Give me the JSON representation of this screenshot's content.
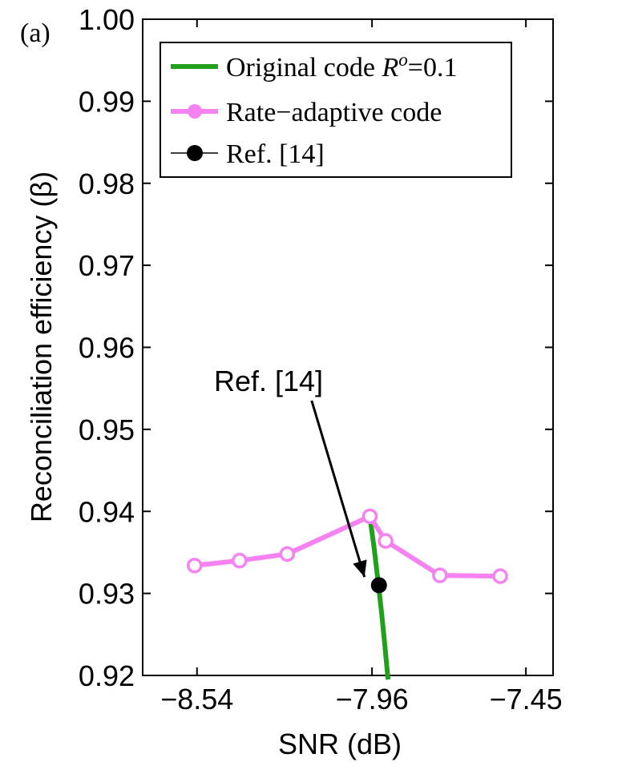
{
  "panel_label": "(a)",
  "chart_data": {
    "type": "line",
    "title": "",
    "xlabel": "SNR (dB)",
    "ylabel": "Reconciliation efficiency (β)",
    "xlim": [
      -8.72,
      -7.36
    ],
    "ylim": [
      0.92,
      1.0
    ],
    "xticks": [
      -8.54,
      -7.96,
      -7.45
    ],
    "xtick_labels": [
      "−8.54",
      "−7.96",
      "−7.45"
    ],
    "yticks": [
      0.92,
      0.93,
      0.94,
      0.95,
      0.96,
      0.97,
      0.98,
      0.99,
      1.0
    ],
    "ytick_labels": [
      "0.92",
      "0.93",
      "0.94",
      "0.95",
      "0.96",
      "0.97",
      "0.98",
      "0.99",
      "1.00"
    ],
    "grid": false,
    "legend_position": "top-right",
    "series": [
      {
        "name": "Original code Rᵒ=0.1",
        "legend_main": "Original code ",
        "legend_var": "R",
        "legend_sup": "o",
        "legend_tail": "=0.1",
        "kind": "line",
        "color": "#22a01c",
        "x": [
          -7.967,
          -7.953,
          -7.94,
          -7.928,
          -7.917,
          -7.907
        ],
        "y": [
          0.9393,
          0.9355,
          0.9315,
          0.9275,
          0.9235,
          0.9195
        ]
      },
      {
        "name": "Rate−adaptive code",
        "kind": "line-marker",
        "color": "#f681f1",
        "x": [
          -8.548,
          -8.399,
          -8.241,
          -7.967,
          -7.915,
          -7.735,
          -7.535
        ],
        "y": [
          0.9334,
          0.934,
          0.9348,
          0.9394,
          0.9364,
          0.9322,
          0.9321
        ]
      },
      {
        "name": "Ref. [14]",
        "kind": "marker",
        "color": "#000000",
        "x": [
          -7.937
        ],
        "y": [
          0.931
        ]
      }
    ],
    "annotations": [
      {
        "text": "Ref. [14]",
        "x_from": -8.16,
        "y_from": 0.9535,
        "x_to": -7.985,
        "y_to": 0.932
      }
    ]
  }
}
